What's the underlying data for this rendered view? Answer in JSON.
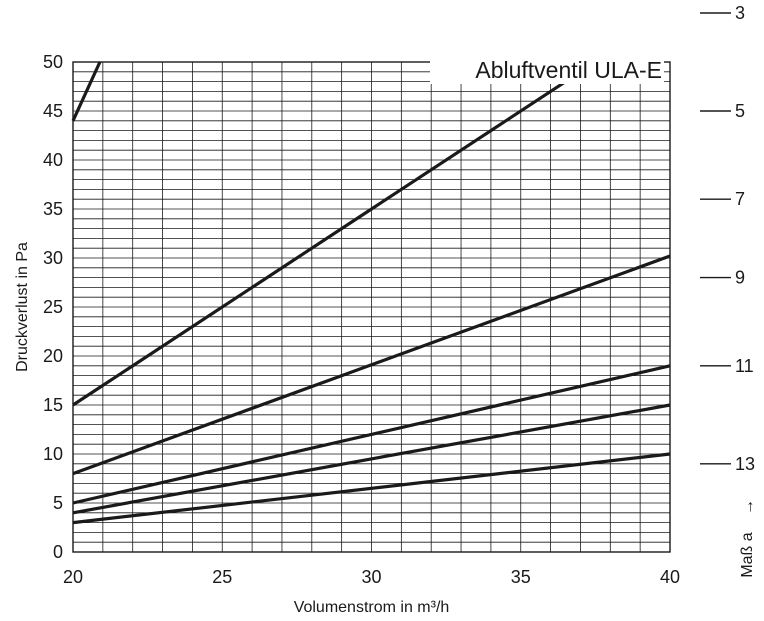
{
  "chart_data": {
    "type": "line",
    "title": "Abluftventil ULA-E",
    "xlabel": "Volumenstrom in m³/h",
    "ylabel": "Druckverlust in Pa",
    "xlim": [
      20,
      40
    ],
    "ylim": [
      0,
      50
    ],
    "x_ticks": [
      "20",
      "25",
      "30",
      "35",
      "40"
    ],
    "y_ticks": [
      "0",
      "5",
      "10",
      "15",
      "20",
      "25",
      "30",
      "35",
      "40",
      "45",
      "50"
    ],
    "grid": true,
    "minor_grid": {
      "x_step": 1,
      "y_step": 1
    },
    "series": [
      {
        "values": [
          [
            20,
            44
          ],
          [
            20.9,
            50
          ]
        ]
      },
      {
        "values": [
          [
            20,
            15
          ],
          [
            30,
            35
          ],
          [
            37,
            49
          ]
        ]
      },
      {
        "values": [
          [
            20,
            8
          ],
          [
            40,
            30.2
          ]
        ]
      },
      {
        "values": [
          [
            20,
            5
          ],
          [
            40,
            19
          ]
        ]
      },
      {
        "values": [
          [
            20,
            4
          ],
          [
            40,
            15
          ]
        ]
      },
      {
        "values": [
          [
            20,
            3
          ],
          [
            40,
            10
          ]
        ]
      }
    ],
    "secondary_scale": {
      "label": "Maß a",
      "arrow": "→",
      "marks": [
        {
          "label": "3",
          "anchor_y": 55
        },
        {
          "label": "5",
          "anchor_y": 45
        },
        {
          "label": "7",
          "anchor_y": 36
        },
        {
          "label": "9",
          "anchor_y": 28
        },
        {
          "label": "11",
          "anchor_y": 19
        },
        {
          "label": "13",
          "anchor_y": 9
        }
      ]
    }
  }
}
